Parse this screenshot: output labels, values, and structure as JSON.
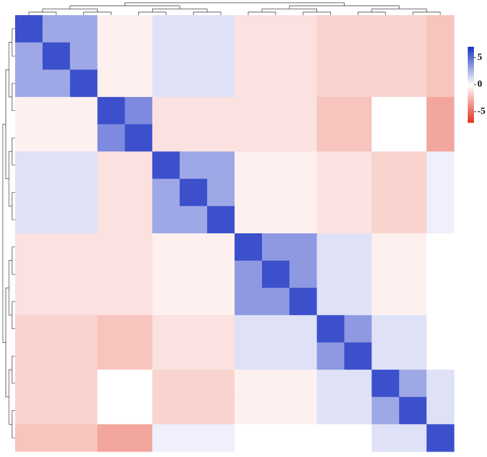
{
  "chart_data": {
    "type": "heatmap",
    "z": [
      [
        6,
        3,
        3,
        -0.5,
        -0.5,
        1,
        1,
        1,
        -1,
        -1,
        -1,
        -1.5,
        -1.5,
        -1.5,
        -1.5,
        -2
      ],
      [
        3,
        6,
        3,
        -0.5,
        -0.5,
        1,
        1,
        1,
        -1,
        -1,
        -1,
        -1.5,
        -1.5,
        -1.5,
        -1.5,
        -2
      ],
      [
        3,
        3,
        6,
        -0.5,
        -0.5,
        1,
        1,
        1,
        -1,
        -1,
        -1,
        -1.5,
        -1.5,
        -1.5,
        -1.5,
        -2
      ],
      [
        -0.5,
        -0.5,
        -0.5,
        6,
        4,
        -1,
        -1,
        -1,
        -1,
        -1,
        -1,
        -2,
        -2,
        0,
        0,
        -3
      ],
      [
        -0.5,
        -0.5,
        -0.5,
        4,
        6,
        -1,
        -1,
        -1,
        -1,
        -1,
        -1,
        -2,
        -2,
        0,
        0,
        -3
      ],
      [
        1,
        1,
        1,
        -1,
        -1,
        6,
        3,
        3,
        -0.5,
        -0.5,
        -0.5,
        -1,
        -1,
        -1.5,
        -1.5,
        0.5
      ],
      [
        1,
        1,
        1,
        -1,
        -1,
        3,
        6,
        3,
        -0.5,
        -0.5,
        -0.5,
        -1,
        -1,
        -1.5,
        -1.5,
        0.5
      ],
      [
        1,
        1,
        1,
        -1,
        -1,
        3,
        3,
        6,
        -0.5,
        -0.5,
        -0.5,
        -1,
        -1,
        -1.5,
        -1.5,
        0.5
      ],
      [
        -1,
        -1,
        -1,
        -1,
        -1,
        -0.5,
        -0.5,
        -0.5,
        6,
        3.5,
        3.5,
        1,
        1,
        -0.5,
        -0.5,
        0
      ],
      [
        -1,
        -1,
        -1,
        -1,
        -1,
        -0.5,
        -0.5,
        -0.5,
        3.5,
        6,
        3.5,
        1,
        1,
        -0.5,
        -0.5,
        0
      ],
      [
        -1,
        -1,
        -1,
        -1,
        -1,
        -0.5,
        -0.5,
        -0.5,
        3.5,
        3.5,
        6,
        1,
        1,
        -0.5,
        -0.5,
        0
      ],
      [
        -1.5,
        -1.5,
        -1.5,
        -2,
        -2,
        -1,
        -1,
        -1,
        1,
        1,
        1,
        6,
        3.5,
        1,
        1,
        0
      ],
      [
        -1.5,
        -1.5,
        -1.5,
        -2,
        -2,
        -1,
        -1,
        -1,
        1,
        1,
        1,
        3.5,
        6,
        1,
        1,
        0
      ],
      [
        -1.5,
        -1.5,
        -1.5,
        0,
        0,
        -1.5,
        -1.5,
        -1.5,
        -0.5,
        -0.5,
        -0.5,
        1,
        1,
        6,
        3,
        1
      ],
      [
        -1.5,
        -1.5,
        -1.5,
        0,
        0,
        -1.5,
        -1.5,
        -1.5,
        -0.5,
        -0.5,
        -0.5,
        1,
        1,
        3,
        6,
        1
      ],
      [
        -2,
        -2,
        -2,
        -3,
        -3,
        0.5,
        0.5,
        0.5,
        0,
        0,
        0,
        0,
        0,
        1,
        1,
        6
      ]
    ],
    "zlim": [
      -7,
      7
    ],
    "zticks": [
      5,
      0,
      -5
    ],
    "colors": [
      "#e3301c",
      "#ffffff",
      "#1c33c4"
    ]
  }
}
